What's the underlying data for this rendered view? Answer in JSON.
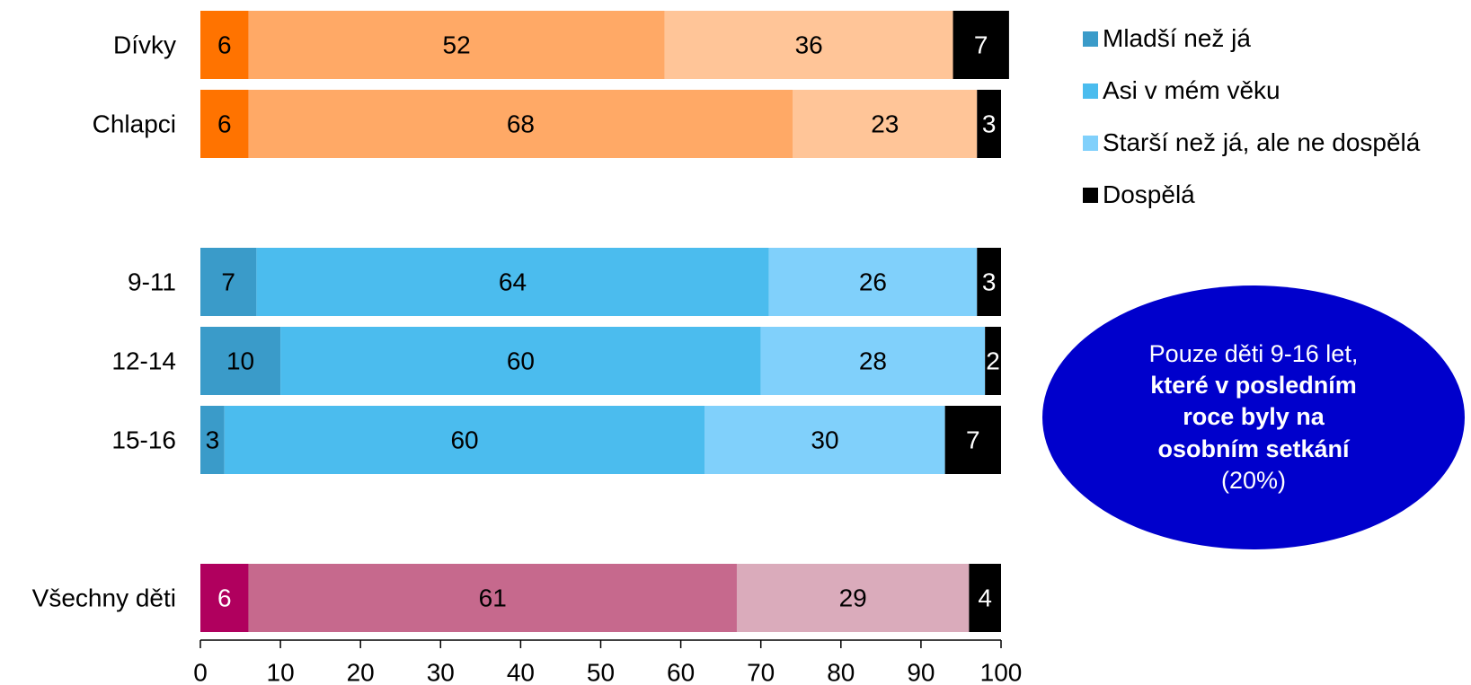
{
  "chart_data": {
    "type": "bar",
    "orientation": "horizontal",
    "stacked": true,
    "xlim": [
      0,
      100
    ],
    "x_ticks": [
      "0",
      "10",
      "20",
      "30",
      "40",
      "50",
      "60",
      "70",
      "80",
      "90",
      "100"
    ],
    "legend": {
      "placement": "top-right",
      "entries": [
        {
          "name": "Mladší než já",
          "color": "#3a9bc9"
        },
        {
          "name": "Asi v mém věku",
          "color": "#4bbcee"
        },
        {
          "name": "Starší než já, ale ne dospělá",
          "color": "#80d0fb"
        },
        {
          "name": "Dospělá",
          "color": "#000000"
        }
      ]
    },
    "groups": [
      {
        "colors": [
          "#ff7300",
          "#ffa966",
          "#ffc598",
          "#000000"
        ],
        "rows": [
          {
            "category": "Dívky",
            "values": [
              6,
              52,
              36,
              7
            ]
          },
          {
            "category": "Chlapci",
            "values": [
              6,
              68,
              23,
              3
            ]
          }
        ]
      },
      {
        "colors": [
          "#3a9bc9",
          "#4bbcee",
          "#80d0fb",
          "#000000"
        ],
        "rows": [
          {
            "category": "9-11",
            "values": [
              7,
              64,
              26,
              3
            ]
          },
          {
            "category": "12-14",
            "values": [
              10,
              60,
              28,
              2
            ]
          },
          {
            "category": "15-16",
            "values": [
              3,
              60,
              30,
              7
            ]
          }
        ]
      },
      {
        "colors": [
          "#b0005e",
          "#c6698d",
          "#daabbb",
          "#000000"
        ],
        "rows": [
          {
            "category": "Všechny děti",
            "values": [
              6,
              61,
              29,
              4
            ]
          }
        ]
      }
    ],
    "annotation": {
      "line1": "Pouze děti 9-16 let,",
      "bold1": "které v posledním",
      "bold2": "roce byly na",
      "bold3": "osobním setkání",
      "line2": "(20%)",
      "color": "#0000cc"
    }
  }
}
